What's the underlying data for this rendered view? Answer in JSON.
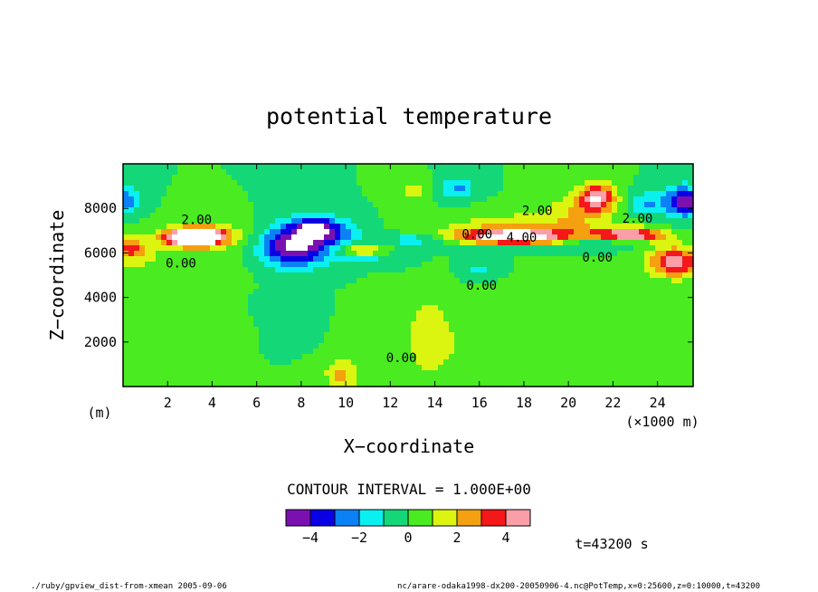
{
  "chart_data": {
    "type": "heatmap",
    "title": "potential temperature",
    "xlabel": "X−coordinate",
    "ylabel": "Z−coordinate",
    "x_unit": "(×1000 m)",
    "y_unit": "(m)",
    "xlim": [
      0,
      25.6
    ],
    "ylim": [
      0,
      10000
    ],
    "x_ticks": [
      2,
      4,
      6,
      8,
      10,
      12,
      14,
      16,
      18,
      20,
      22,
      24
    ],
    "y_ticks": [
      2000,
      4000,
      6000,
      8000
    ],
    "contour_interval_text": "CONTOUR INTERVAL = 1.000E+00",
    "time_text": "t=43200 s",
    "contour_labels": [
      {
        "text": "2.00",
        "x": 3.3,
        "y": 7300
      },
      {
        "text": "0.00",
        "x": 2.6,
        "y": 5350
      },
      {
        "text": "0.00",
        "x": 15.9,
        "y": 6650
      },
      {
        "text": "4.00",
        "x": 17.9,
        "y": 6500
      },
      {
        "text": "2.00",
        "x": 18.6,
        "y": 7700
      },
      {
        "text": "2.00",
        "x": 23.1,
        "y": 7350
      },
      {
        "text": "0.00",
        "x": 21.3,
        "y": 5600
      },
      {
        "text": "0.00",
        "x": 16.1,
        "y": 4350
      },
      {
        "text": "0.00",
        "x": 12.5,
        "y": 1100
      }
    ],
    "colorbar": {
      "levels": [
        -5,
        -4,
        -3,
        -2,
        -1,
        0,
        1,
        2,
        3,
        4,
        5
      ],
      "tick_labels": [
        "−4",
        "−2",
        "0",
        "2",
        "4"
      ],
      "tick_values": [
        -4,
        -2,
        0,
        2,
        4
      ],
      "colors": [
        "#7b10b0",
        "#0a00e6",
        "#0a82f5",
        "#0af0f0",
        "#14d878",
        "#4aeb20",
        "#dcf510",
        "#f5a010",
        "#f51818",
        "#fa9ea8"
      ]
    },
    "features": [
      {
        "x": 3.2,
        "y": 6700,
        "sx": 1.2,
        "sy": 350,
        "amp": 9.0
      },
      {
        "x": 3.8,
        "y": 6800,
        "sx": 1.9,
        "sy": 700,
        "amp": 1.8
      },
      {
        "x": 0.3,
        "y": 6200,
        "sx": 0.8,
        "sy": 500,
        "amp": 3.2
      },
      {
        "x": 7.7,
        "y": 6300,
        "sx": 1.5,
        "sy": 900,
        "amp": -5.5
      },
      {
        "x": 8.5,
        "y": 7200,
        "sx": 1.0,
        "sy": 500,
        "amp": -3.0
      },
      {
        "x": 9.5,
        "y": 6900,
        "sx": 1.2,
        "sy": 600,
        "amp": -2.5
      },
      {
        "x": 10.7,
        "y": 6100,
        "sx": 1.0,
        "sy": 250,
        "amp": 2.6
      },
      {
        "x": 11.0,
        "y": 5700,
        "sx": 1.6,
        "sy": 300,
        "amp": -1.3
      },
      {
        "x": 13.2,
        "y": 6600,
        "sx": 1.6,
        "sy": 250,
        "amp": -1.8
      },
      {
        "x": 15.0,
        "y": 8900,
        "sx": 0.8,
        "sy": 500,
        "amp": -2.2
      },
      {
        "x": 13.0,
        "y": 8800,
        "sx": 0.7,
        "sy": 500,
        "amp": 1.4
      },
      {
        "x": 17.6,
        "y": 6700,
        "sx": 2.6,
        "sy": 350,
        "amp": 5.5
      },
      {
        "x": 18.0,
        "y": 7100,
        "sx": 3.5,
        "sy": 700,
        "amp": 2.0
      },
      {
        "x": 17.4,
        "y": 6300,
        "sx": 3.0,
        "sy": 300,
        "amp": -1.4
      },
      {
        "x": 16.0,
        "y": 5300,
        "sx": 0.8,
        "sy": 400,
        "amp": -1.2
      },
      {
        "x": 21.3,
        "y": 8500,
        "sx": 0.8,
        "sy": 600,
        "amp": 4.5
      },
      {
        "x": 20.5,
        "y": 8000,
        "sx": 1.5,
        "sy": 800,
        "amp": 1.6
      },
      {
        "x": 22.7,
        "y": 6800,
        "sx": 1.6,
        "sy": 300,
        "amp": 5.5
      },
      {
        "x": 21.5,
        "y": 6500,
        "sx": 2.0,
        "sy": 280,
        "amp": -1.8
      },
      {
        "x": 25.2,
        "y": 8300,
        "sx": 1.0,
        "sy": 700,
        "amp": -4.5
      },
      {
        "x": 23.4,
        "y": 8200,
        "sx": 0.7,
        "sy": 500,
        "amp": -2.0
      },
      {
        "x": 24.8,
        "y": 5600,
        "sx": 1.2,
        "sy": 700,
        "amp": 4.5
      },
      {
        "x": 0.2,
        "y": 8400,
        "sx": 0.6,
        "sy": 600,
        "amp": -2.5
      },
      {
        "x": 9.8,
        "y": 500,
        "sx": 0.7,
        "sy": 700,
        "amp": 2.4
      },
      {
        "x": 13.7,
        "y": 2500,
        "sx": 0.8,
        "sy": 1800,
        "amp": 1.3
      },
      {
        "x": 16.5,
        "y": 1800,
        "sx": 4.5,
        "sy": 1800,
        "amp": 1.0
      },
      {
        "x": 7.5,
        "y": 3000,
        "sx": 1.2,
        "sy": 1000,
        "amp": -0.6
      },
      {
        "x": 4.0,
        "y": 2500,
        "sx": 1.5,
        "sy": 800,
        "amp": 0.6
      },
      {
        "x": 2.0,
        "y": 5400,
        "sx": 3.0,
        "sy": 800,
        "amp": 0.9
      }
    ]
  },
  "footer": {
    "left": "./ruby/gpview_dist-from-xmean  2005-09-06",
    "right": "nc/arare-odaka1998-dx200-20050906-4.nc@PotTemp,x=0:25600,z=0:10000,t=43200"
  }
}
